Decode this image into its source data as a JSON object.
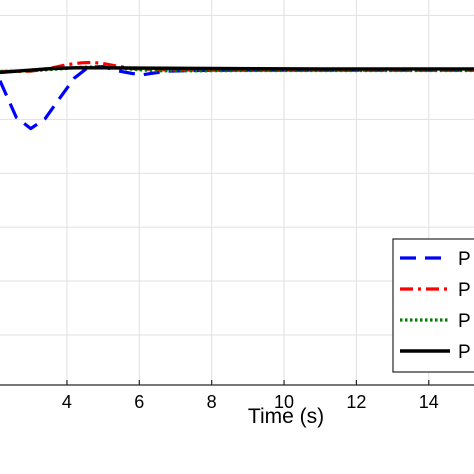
{
  "chart_data": {
    "type": "line",
    "title": "",
    "xlabel": "Time (s)",
    "ylabel": "",
    "xlim": [
      2.15,
      15.25
    ],
    "ylim": [
      0,
      1
    ],
    "x_ticks": [
      4,
      6,
      8,
      10,
      12,
      14
    ],
    "x_tick_labels": [
      "4",
      "6",
      "8",
      "10",
      "12",
      "14"
    ],
    "grid": true,
    "legend_position": "lower-right",
    "series": [
      {
        "name": "P",
        "color": "#0000ff",
        "style": "dashed",
        "x": [
          2.15,
          2.6,
          3.0,
          3.4,
          3.8,
          4.2,
          4.6,
          5.0,
          5.4,
          5.8,
          6.1,
          6.4,
          6.8,
          7.5,
          9,
          12,
          15.25
        ],
        "y": [
          0.79,
          0.695,
          0.666,
          0.692,
          0.745,
          0.797,
          0.826,
          0.827,
          0.816,
          0.809,
          0.806,
          0.81,
          0.815,
          0.817,
          0.818,
          0.818,
          0.818
        ]
      },
      {
        "name": "P",
        "color": "#ff0000",
        "style": "dashdot",
        "x": [
          2.15,
          3.0,
          3.6,
          4.0,
          4.4,
          4.7,
          5.0,
          5.4,
          5.8,
          6.5,
          8,
          11,
          15.25
        ],
        "y": [
          0.814,
          0.815,
          0.824,
          0.832,
          0.837,
          0.838,
          0.835,
          0.828,
          0.822,
          0.819,
          0.818,
          0.818,
          0.818
        ]
      },
      {
        "name": "P",
        "color": "#008000",
        "style": "dotted",
        "x": [
          2.15,
          3.0,
          3.8,
          4.3,
          4.8,
          5.4,
          6.0,
          6.5,
          7.5,
          9,
          12,
          15.25
        ],
        "y": [
          0.814,
          0.816,
          0.821,
          0.825,
          0.826,
          0.823,
          0.819,
          0.816,
          0.816,
          0.817,
          0.817,
          0.817
        ]
      },
      {
        "name": "P",
        "color": "#000000",
        "style": "solid",
        "x": [
          2.15,
          3.0,
          3.6,
          4.2,
          5.0,
          6.0,
          8.0,
          11,
          15.25
        ],
        "y": [
          0.812,
          0.818,
          0.822,
          0.824,
          0.824,
          0.823,
          0.822,
          0.821,
          0.821
        ]
      }
    ]
  }
}
